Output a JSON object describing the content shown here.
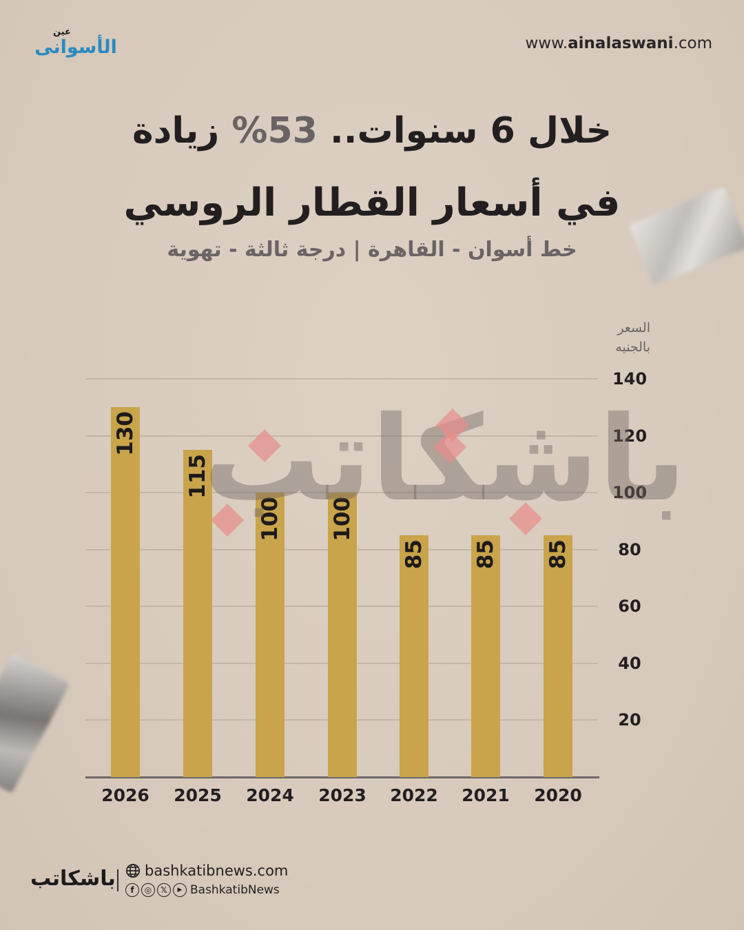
{
  "header": {
    "logo_top": "عين",
    "logo_main": "الأسوانى",
    "site_prefix": "www.",
    "site_bold": "ainalaswani",
    "site_suffix": ".com"
  },
  "title": {
    "line1_before": "خلال 6 سنوات.. ",
    "line1_pct": "53%",
    "line1_after": " زيادة",
    "line2": "في أسعار القطار الروسي",
    "subtitle": "خط أسوان - القاهرة | درجة ثالثة - تهوية"
  },
  "chart": {
    "y_title_line1": "السعر",
    "y_title_line2": "بالجنيه",
    "watermark": "باشكاتب"
  },
  "chart_data": {
    "type": "bar",
    "title": "خلال 6 سنوات.. 53% زيادة في أسعار القطار الروسي",
    "subtitle": "خط أسوان - القاهرة | درجة ثالثة - تهوية",
    "xlabel": "",
    "ylabel": "السعر بالجنيه",
    "categories": [
      "2026",
      "2025",
      "2024",
      "2023",
      "2022",
      "2021",
      "2020"
    ],
    "values": [
      130,
      115,
      100,
      100,
      85,
      85,
      85
    ],
    "value_labels": [
      "130",
      "115",
      "100",
      "100",
      "85",
      "85",
      "85"
    ],
    "yticks": [
      "140",
      "120",
      "100",
      "80",
      "60",
      "40",
      "20"
    ],
    "ylim": [
      0,
      140
    ],
    "grid": true,
    "y_axis_position": "right",
    "bar_color": "#c9a44b"
  },
  "footer": {
    "logo": "باشكاتب",
    "website": "bashkatibnews.com",
    "social_handle": "BashkatibNews",
    "social_icons": [
      "facebook-icon",
      "instagram-icon",
      "x-icon",
      "youtube-icon"
    ]
  },
  "colors": {
    "background": "#d8cbbd",
    "bar": "#c9a44b",
    "text": "#231f20",
    "muted": "#6b6364",
    "brand_blue": "#2a8bbf",
    "brand_red": "#d9252b"
  }
}
